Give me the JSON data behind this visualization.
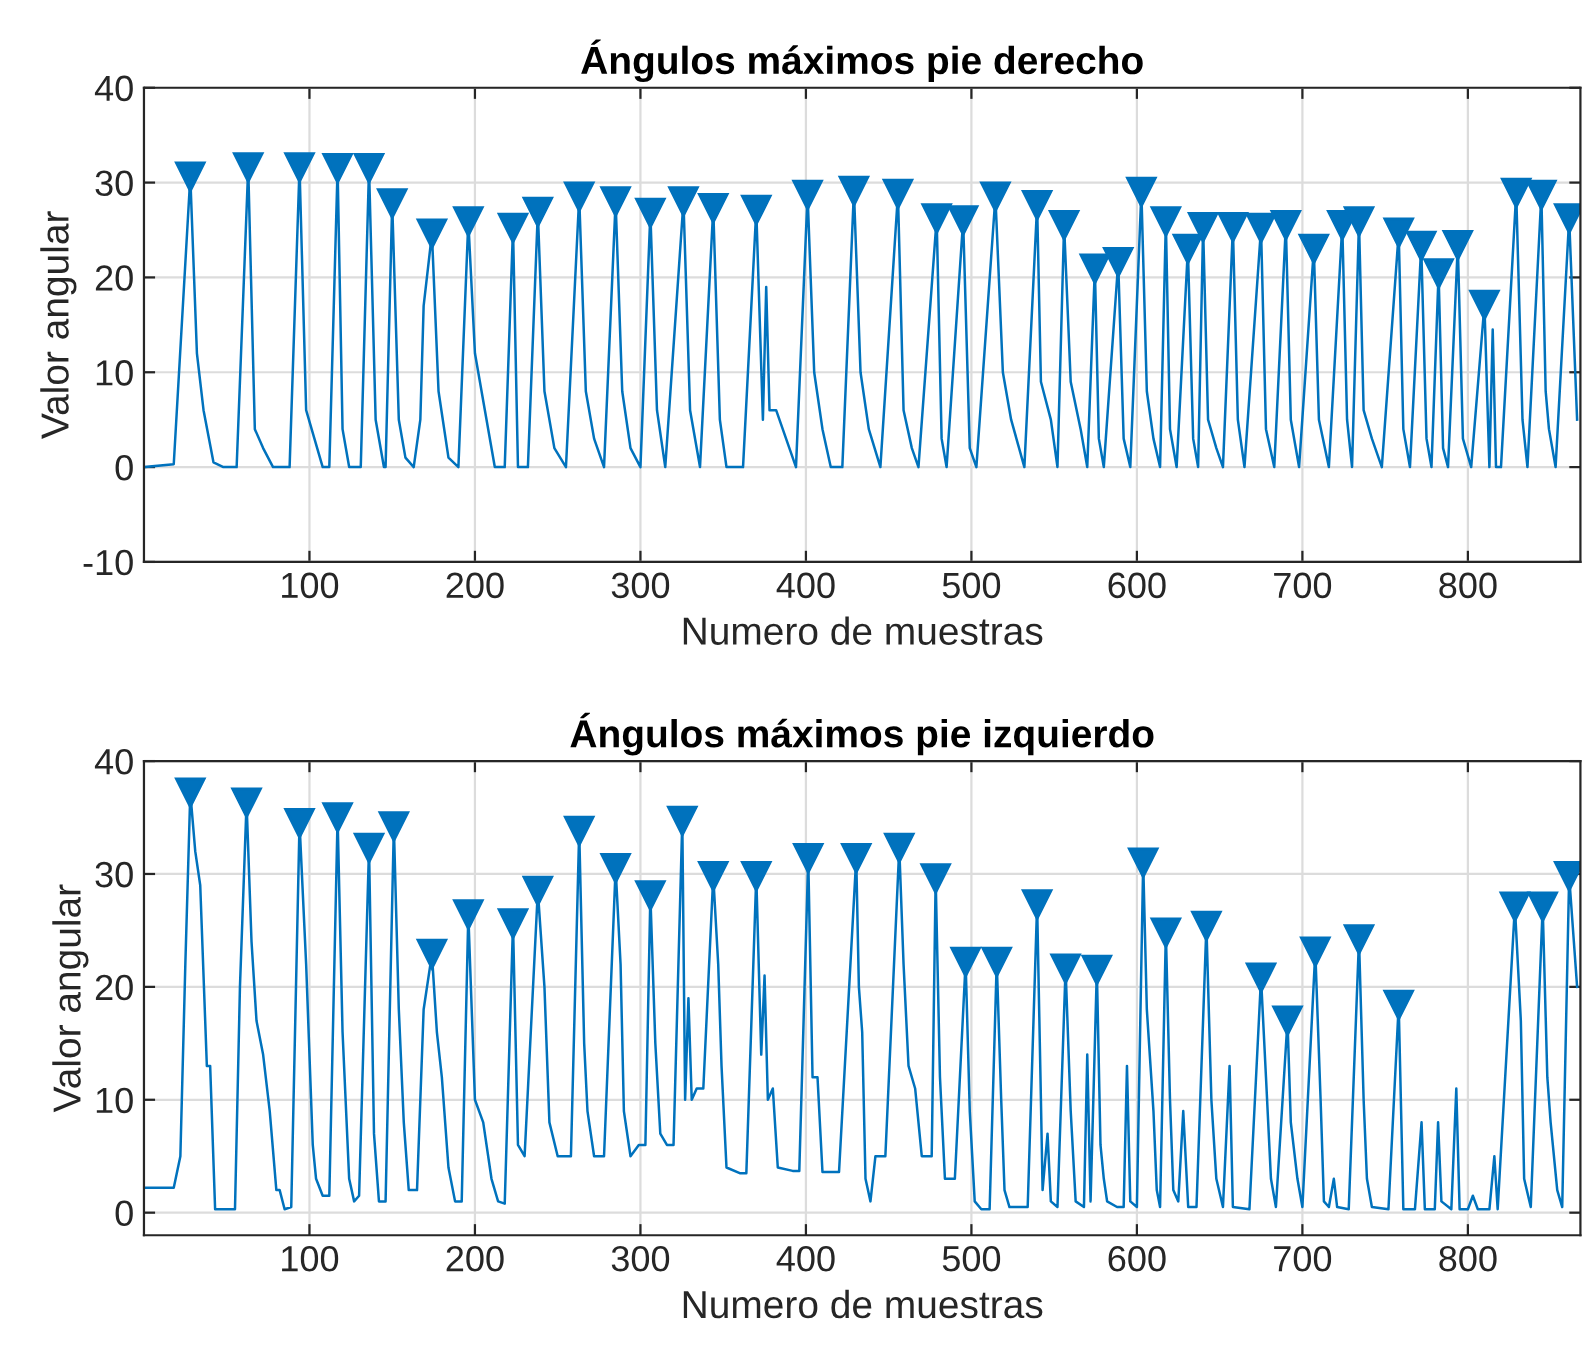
{
  "chart_data": [
    {
      "type": "line",
      "title": "Ángulos máximos pie derecho",
      "xlabel": "Numero de muestras",
      "ylabel": "Valor angular",
      "xlim": [
        0,
        868
      ],
      "ylim": [
        -10,
        40
      ],
      "xticks": [
        100,
        200,
        300,
        400,
        500,
        600,
        700,
        800
      ],
      "yticks": [
        -10,
        0,
        10,
        20,
        30,
        40
      ],
      "grid": true,
      "series": [
        {
          "color": "#0072bd",
          "x": [
            0,
            18,
            28,
            32,
            36,
            42,
            48,
            56,
            63,
            67,
            72,
            78,
            88,
            94,
            98,
            103,
            108,
            112,
            117,
            120,
            124,
            131,
            136,
            140,
            145,
            146,
            150,
            154,
            158,
            163,
            167,
            169,
            174,
            178,
            184,
            190,
            196,
            200,
            206,
            212,
            218,
            223,
            226,
            232,
            238,
            242,
            248,
            255,
            263,
            267,
            272,
            278,
            285,
            289,
            294,
            300,
            306,
            310,
            315,
            326,
            330,
            336,
            344,
            348,
            352,
            362,
            370,
            374,
            376,
            378,
            382,
            390,
            394,
            401,
            405,
            410,
            415,
            422,
            429,
            433,
            438,
            445,
            455.6,
            459,
            464,
            468,
            479,
            482,
            485,
            495,
            499,
            503,
            514.5,
            519,
            524,
            532,
            539.7,
            542,
            548,
            552,
            556,
            560,
            566,
            570,
            574.6,
            577,
            580,
            588.7,
            592,
            596,
            602.7,
            606,
            610,
            614,
            617.5,
            620,
            624,
            630.8,
            634,
            637,
            640,
            643,
            648,
            652,
            658,
            661,
            665,
            675,
            678,
            683,
            690,
            693,
            698,
            706.9,
            710,
            716,
            724.1,
            727,
            730,
            734.2,
            737,
            742,
            748,
            758.2,
            761,
            765,
            771.8,
            775,
            778,
            782.3,
            785,
            788,
            793.9,
            797,
            802,
            810,
            813,
            815,
            817,
            820,
            829.2,
            833,
            836,
            844.4,
            847,
            849,
            853,
            861.2,
            866
          ],
          "values": [
            0,
            0.3,
            30.6,
            12,
            6,
            0.5,
            0,
            0,
            31.6,
            4,
            2,
            0,
            0,
            31.6,
            6,
            3,
            0,
            0,
            31.5,
            4,
            0,
            0,
            31.5,
            5,
            0,
            0,
            27.8,
            5,
            1,
            0,
            5,
            17,
            24.6,
            8,
            1,
            0,
            25.9,
            12,
            6,
            0,
            0,
            25.2,
            0,
            0,
            26.9,
            8,
            2,
            0,
            28.5,
            8,
            3,
            0,
            28,
            8,
            2,
            0,
            26.8,
            6,
            0,
            28,
            6,
            0,
            27.3,
            5,
            0,
            0,
            27.1,
            5,
            19,
            6,
            6,
            2,
            0,
            28.7,
            10,
            4,
            0,
            0,
            29.1,
            10,
            4,
            0,
            28.8,
            6,
            2,
            0,
            26.2,
            3,
            0,
            26,
            2,
            0,
            28.5,
            10,
            5,
            0,
            27.6,
            9,
            5,
            0,
            25.5,
            9,
            4,
            0,
            20.9,
            3,
            0,
            21.6,
            3,
            0,
            29,
            8,
            3,
            0,
            25.9,
            4,
            0,
            23,
            3,
            0,
            25.3,
            5,
            2,
            0,
            25.3,
            5,
            0,
            25.2,
            4,
            0,
            25.5,
            5,
            0,
            23,
            5,
            0,
            25.5,
            5,
            0,
            25.9,
            6,
            3,
            0,
            24.7,
            4,
            0,
            23.3,
            3,
            0,
            20.4,
            2,
            0,
            23.4,
            3,
            0,
            17.1,
            0,
            14.5,
            0,
            0,
            28.9,
            5,
            0,
            28.7,
            8,
            4,
            0,
            26.2,
            5
          ]
        },
        {
          "type": "scatter",
          "color": "#0072bd",
          "marker": "triangle",
          "x": [
            28,
            63,
            94,
            117,
            136,
            150,
            174,
            196,
            223,
            238,
            263,
            285,
            306,
            326,
            344,
            370,
            401,
            429,
            455.6,
            479,
            495,
            514.5,
            539.7,
            556,
            574.6,
            588.7,
            602.7,
            617.5,
            630.8,
            640,
            658,
            675,
            690,
            706.9,
            724.1,
            734.2,
            758.2,
            771.8,
            782.3,
            793.9,
            810,
            829.2,
            844.4,
            861.2
          ],
          "values": [
            30.6,
            31.6,
            31.6,
            31.5,
            31.5,
            27.8,
            24.6,
            25.9,
            25.2,
            26.9,
            28.5,
            28,
            26.8,
            28,
            27.3,
            27.1,
            28.7,
            29.1,
            28.8,
            26.2,
            26,
            28.5,
            27.6,
            25.5,
            20.9,
            21.6,
            29,
            25.9,
            23,
            25.3,
            25.3,
            25.2,
            25.5,
            23,
            25.5,
            25.9,
            24.7,
            23.3,
            20.4,
            23.4,
            17.1,
            28.9,
            28.7,
            26.2
          ]
        }
      ]
    },
    {
      "type": "line",
      "title": "Ángulos máximos pie izquierdo",
      "xlabel": "Numero de muestras",
      "ylabel": "Valor angular",
      "xlim": [
        0,
        868
      ],
      "ylim": [
        -2,
        40
      ],
      "xticks": [
        100,
        200,
        300,
        400,
        500,
        600,
        700,
        800
      ],
      "yticks": [
        0,
        10,
        20,
        30,
        40
      ],
      "grid": true,
      "series": [
        {
          "color": "#0072bd",
          "x": [
            0,
            18,
            22,
            25,
            28,
            31,
            34,
            38,
            40,
            43,
            55,
            58,
            62,
            65,
            68,
            72,
            76,
            80,
            82,
            85,
            89,
            94,
            98,
            102,
            104,
            108,
            112,
            117,
            120,
            124,
            127,
            130,
            136,
            139,
            142,
            146,
            151,
            154,
            157,
            160,
            165,
            169,
            174,
            177,
            180,
            184,
            188,
            192,
            196,
            200,
            205,
            210,
            214,
            218,
            223,
            226,
            230,
            238,
            242,
            245,
            250,
            258,
            263,
            266,
            268,
            272,
            278,
            285,
            288,
            290,
            294,
            299,
            303,
            306,
            309,
            312,
            316,
            320,
            325.3,
            327,
            329,
            331,
            334,
            338,
            344,
            347,
            349,
            352,
            360,
            364,
            370,
            373,
            375,
            377,
            380,
            383,
            392,
            396,
            401.4,
            404,
            407,
            410,
            420,
            430.4,
            432,
            434,
            436,
            439,
            442,
            448,
            456.4,
            459,
            462,
            466,
            470,
            476,
            478.4,
            481,
            484,
            490,
            496.5,
            499,
            502,
            506,
            511,
            515.3,
            518,
            520,
            523,
            534,
            539.7,
            542,
            543,
            546,
            548,
            552,
            556.9,
            560,
            563,
            568,
            570,
            572,
            575.8,
            578,
            580,
            582,
            588,
            592,
            594,
            596,
            600,
            603.8,
            606,
            610,
            612,
            614,
            617.5,
            620,
            622,
            625,
            628,
            631,
            636,
            642,
            645,
            648,
            652,
            656,
            658,
            668,
            675,
            678,
            681,
            684,
            691,
            693,
            697,
            700,
            707.8,
            711,
            713,
            716,
            719,
            721,
            728,
            734.2,
            737,
            739,
            742,
            752,
            758.2,
            761,
            768,
            772,
            774,
            780,
            782,
            784,
            790,
            793,
            795,
            800,
            803,
            806,
            813,
            816,
            818,
            828.4,
            832,
            834,
            838,
            845.2,
            848,
            850,
            854,
            857,
            861.2,
            866
          ],
          "values": [
            2.2,
            2.2,
            5,
            22,
            37.2,
            32,
            29,
            13,
            13,
            0.3,
            0.3,
            20,
            36.3,
            24,
            17,
            14,
            9,
            2,
            2,
            0.3,
            0.5,
            34.5,
            22,
            6,
            3,
            1.5,
            1.5,
            35,
            16,
            3,
            1,
            1.5,
            32.3,
            7,
            1,
            1,
            34.2,
            18,
            8,
            2,
            2,
            18,
            22.9,
            16,
            12,
            4,
            1,
            1,
            26.4,
            10,
            8,
            3,
            1,
            0.8,
            25.6,
            6,
            5,
            28.5,
            20,
            8,
            5,
            5,
            33.8,
            15,
            9,
            5,
            5,
            30.5,
            22,
            9,
            5,
            6,
            6,
            28.1,
            15,
            7,
            6,
            6,
            34.7,
            10,
            19,
            10,
            11,
            11,
            29.8,
            22,
            13,
            4,
            3.5,
            3.5,
            29.8,
            14,
            21,
            10,
            11,
            4,
            3.7,
            3.7,
            31.4,
            12,
            12,
            3.6,
            3.6,
            31.4,
            20,
            16,
            3,
            1,
            5,
            5,
            32.3,
            22,
            13,
            11,
            5,
            5,
            29.6,
            12,
            3,
            3,
            22.2,
            9,
            1,
            0.3,
            0.3,
            22.2,
            10,
            2,
            0.5,
            0.5,
            27.3,
            10,
            2,
            7,
            1,
            0.5,
            21.6,
            9,
            1,
            0.5,
            14,
            1,
            21.5,
            6,
            3,
            1,
            0.5,
            0.5,
            13,
            1,
            0.5,
            31,
            18,
            9,
            2,
            0.5,
            24.8,
            10,
            2,
            1,
            9,
            0.5,
            0.5,
            25.4,
            10,
            3,
            0.5,
            13,
            0.5,
            0.3,
            20.8,
            12,
            3,
            0.5,
            17,
            8,
            3,
            0.5,
            23.1,
            10,
            1,
            0.5,
            3,
            0.5,
            0.3,
            24.2,
            10,
            3,
            0.5,
            0.3,
            18.4,
            0.3,
            0.3,
            8,
            0.3,
            0.3,
            8,
            1,
            0.3,
            11,
            0.3,
            0.3,
            1.5,
            0.3,
            0.3,
            5,
            0.3,
            27.1,
            17,
            3,
            0.5,
            27.1,
            12,
            8,
            2,
            0.5,
            29.8,
            20
          ]
        },
        {
          "type": "scatter",
          "color": "#0072bd",
          "marker": "triangle",
          "x": [
            28,
            62,
            94,
            117,
            136,
            151,
            174,
            196,
            223,
            238,
            263,
            285,
            306,
            325.3,
            344,
            370,
            401.4,
            430.4,
            456.4,
            478.4,
            496.5,
            515.3,
            539.7,
            556.9,
            575.8,
            603.8,
            617.5,
            642,
            675,
            691,
            707.8,
            734.2,
            758.2,
            828.4,
            845.2,
            861.2
          ],
          "values": [
            37.2,
            36.3,
            34.5,
            35,
            32.3,
            34.2,
            22.9,
            26.4,
            25.6,
            28.5,
            33.8,
            30.5,
            28.1,
            34.7,
            29.8,
            29.8,
            31.4,
            31.4,
            32.3,
            29.6,
            22.2,
            22.2,
            27.3,
            21.6,
            21.5,
            31,
            24.8,
            25.4,
            20.8,
            17,
            23.1,
            24.2,
            18.4,
            27.1,
            27.1,
            29.8
          ]
        }
      ]
    }
  ]
}
